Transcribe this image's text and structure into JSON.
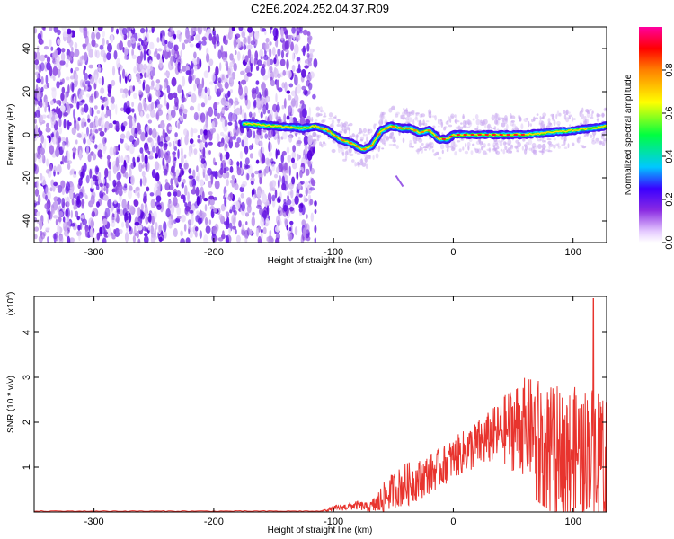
{
  "page_title": "C2E6.2024.252.04.37.R09",
  "chart_data": [
    {
      "type": "heatmap",
      "name": "spectrogram",
      "xlabel": "Height of straight line (km)",
      "ylabel": "Frequency (Hz)",
      "xlim": [
        -350,
        128
      ],
      "ylim": [
        -50,
        50
      ],
      "xticks": [
        -300,
        -200,
        -100,
        0,
        100
      ],
      "yticks": [
        -40,
        -20,
        0,
        20,
        40
      ],
      "noise_region_x": [
        -350,
        -115
      ],
      "ridge": {
        "x": [
          -170,
          -150,
          -125,
          -115,
          -105,
          -95,
          -85,
          -75,
          -68,
          -60,
          -52,
          -44,
          -36,
          -28,
          -20,
          -12,
          -5,
          0,
          20,
          40,
          60,
          80,
          100,
          115,
          128
        ],
        "freq": [
          5,
          4,
          3,
          4,
          2,
          -2,
          -4,
          -7,
          -5,
          2,
          4,
          3,
          3,
          1,
          2,
          -2,
          -2,
          0,
          0,
          0,
          0,
          1,
          2,
          3,
          4
        ]
      },
      "colorbar": {
        "label": "Normalized spectral amplitude",
        "ticks": [
          0.0,
          0.2,
          0.4,
          0.6,
          0.8
        ],
        "range": [
          0,
          1
        ]
      }
    },
    {
      "type": "line",
      "name": "snr",
      "xlabel": "Height of straight line (km)",
      "ylabel": "SNR (10 * v/v)",
      "scale_label": "(x10",
      "scale_exp": "4",
      "xlim": [
        -350,
        128
      ],
      "ylim": [
        0,
        4.8
      ],
      "xticks": [
        -300,
        -200,
        -100,
        0,
        100
      ],
      "yticks": [
        1,
        2,
        3,
        4
      ],
      "color": "#e8342e",
      "envelope": {
        "x": [
          -350,
          -110,
          -100,
          -80,
          -70,
          -60,
          -50,
          -45,
          -40,
          -30,
          -20,
          -10,
          0,
          10,
          20,
          30,
          40,
          50,
          60,
          70,
          80,
          90,
          100,
          110,
          120,
          128
        ],
        "mean": [
          0.02,
          0.02,
          0.08,
          0.15,
          0.1,
          0.25,
          0.5,
          0.55,
          0.6,
          0.7,
          0.85,
          1.0,
          1.2,
          1.35,
          1.5,
          1.65,
          1.8,
          1.9,
          1.9,
          1.8,
          1.6,
          1.5,
          1.4,
          1.4,
          1.5,
          1.5
        ],
        "amp": [
          0.01,
          0.01,
          0.06,
          0.1,
          0.1,
          0.35,
          0.4,
          0.45,
          0.5,
          0.45,
          0.45,
          0.45,
          0.45,
          0.5,
          0.55,
          0.6,
          0.7,
          1.0,
          1.1,
          1.2,
          1.2,
          1.3,
          1.4,
          1.4,
          1.4,
          1.4
        ]
      },
      "peak": {
        "x": 117,
        "y": 4.75
      }
    }
  ]
}
